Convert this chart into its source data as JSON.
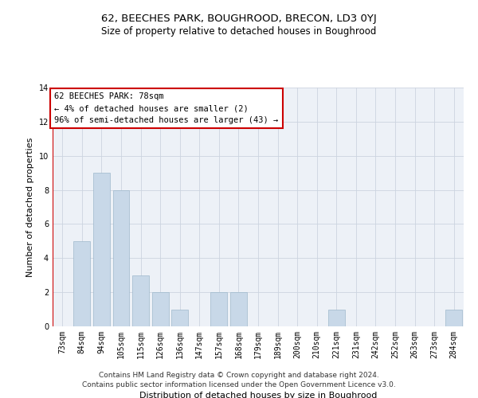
{
  "title": "62, BEECHES PARK, BOUGHROOD, BRECON, LD3 0YJ",
  "subtitle": "Size of property relative to detached houses in Boughrood",
  "xlabel": "Distribution of detached houses by size in Boughrood",
  "ylabel": "Number of detached properties",
  "categories": [
    "73sqm",
    "84sqm",
    "94sqm",
    "105sqm",
    "115sqm",
    "126sqm",
    "136sqm",
    "147sqm",
    "157sqm",
    "168sqm",
    "179sqm",
    "189sqm",
    "200sqm",
    "210sqm",
    "221sqm",
    "231sqm",
    "242sqm",
    "252sqm",
    "263sqm",
    "273sqm",
    "284sqm"
  ],
  "values": [
    0,
    5,
    9,
    8,
    3,
    2,
    1,
    0,
    2,
    2,
    0,
    0,
    0,
    0,
    1,
    0,
    0,
    0,
    0,
    0,
    1
  ],
  "bar_color": "#c8d8e8",
  "bar_edge_color": "#9eb8cc",
  "highlight_color": "#cc0000",
  "annotation_text": "62 BEECHES PARK: 78sqm\n← 4% of detached houses are smaller (2)\n96% of semi-detached houses are larger (43) →",
  "annotation_box_color": "#cc0000",
  "ylim": [
    0,
    14
  ],
  "yticks": [
    0,
    2,
    4,
    6,
    8,
    10,
    12,
    14
  ],
  "grid_color": "#ccd4e0",
  "background_color": "#edf1f7",
  "footer_line1": "Contains HM Land Registry data © Crown copyright and database right 2024.",
  "footer_line2": "Contains public sector information licensed under the Open Government Licence v3.0.",
  "title_fontsize": 9.5,
  "subtitle_fontsize": 8.5,
  "xlabel_fontsize": 8,
  "ylabel_fontsize": 8,
  "tick_fontsize": 7,
  "annotation_fontsize": 7.5,
  "footer_fontsize": 6.5
}
